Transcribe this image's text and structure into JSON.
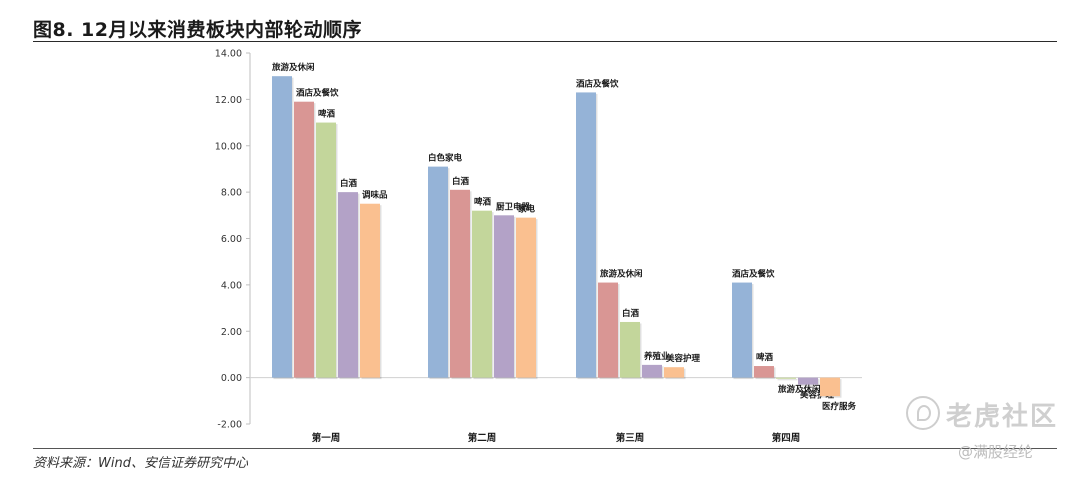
{
  "figure": {
    "title": "图8. 12月以来消费板块内部轮动顺序",
    "source": "资料来源：Wind、安信证券研究中心"
  },
  "watermark": {
    "brand": "老虎社区",
    "handle": "@满股经纶"
  },
  "chart_data": {
    "type": "bar",
    "ylim": [
      -2,
      14
    ],
    "yticks": [
      "14.00",
      "12.00",
      "10.00",
      "8.00",
      "6.00",
      "4.00",
      "2.00",
      "0.00",
      "-2.00"
    ],
    "grid": false,
    "legend": "none",
    "categories": [
      "第一周",
      "第二周",
      "第三周",
      "第四周"
    ],
    "groups": [
      {
        "category": "第一周",
        "bars": [
          {
            "label": "旅游及休闲",
            "value": 13.0,
            "color": "#95b3d7"
          },
          {
            "label": "酒店及餐饮",
            "value": 11.9,
            "color": "#d99694"
          },
          {
            "label": "啤酒",
            "value": 11.0,
            "color": "#c3d69b"
          },
          {
            "label": "白酒",
            "value": 8.0,
            "color": "#b3a2c7"
          },
          {
            "label": "调味品",
            "value": 7.5,
            "color": "#fac090"
          }
        ]
      },
      {
        "category": "第二周",
        "bars": [
          {
            "label": "白色家电",
            "value": 9.1,
            "color": "#95b3d7"
          },
          {
            "label": "白酒",
            "value": 8.1,
            "color": "#d99694"
          },
          {
            "label": "啤酒",
            "value": 7.2,
            "color": "#c3d69b"
          },
          {
            "label": "厨卫电器",
            "value": 7.0,
            "color": "#b3a2c7"
          },
          {
            "label": "家电",
            "value": 6.9,
            "color": "#fac090"
          }
        ]
      },
      {
        "category": "第三周",
        "bars": [
          {
            "label": "酒店及餐饮",
            "value": 12.3,
            "color": "#95b3d7"
          },
          {
            "label": "旅游及休闲",
            "value": 4.1,
            "color": "#d99694"
          },
          {
            "label": "白酒",
            "value": 2.4,
            "color": "#c3d69b"
          },
          {
            "label": "养殖业",
            "value": 0.55,
            "color": "#b3a2c7"
          },
          {
            "label": "美容护理",
            "value": 0.45,
            "color": "#fac090"
          }
        ]
      },
      {
        "category": "第四周",
        "bars": [
          {
            "label": "酒店及餐饮",
            "value": 4.1,
            "color": "#95b3d7"
          },
          {
            "label": "啤酒",
            "value": 0.5,
            "color": "#d99694"
          },
          {
            "label": "旅游及休闲",
            "value": -0.05,
            "color": "#c3d69b"
          },
          {
            "label": "美容护理",
            "value": -0.3,
            "color": "#b3a2c7"
          },
          {
            "label": "医疗服务",
            "value": -0.8,
            "color": "#fac090"
          }
        ]
      }
    ]
  }
}
